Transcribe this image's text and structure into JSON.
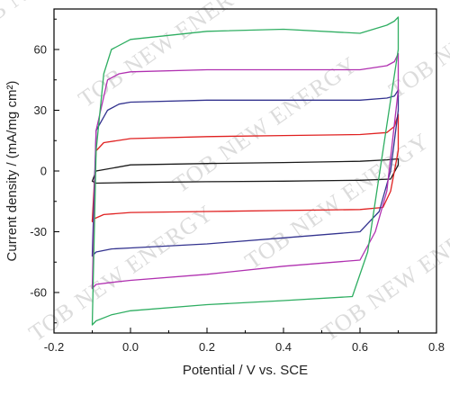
{
  "chart_data": {
    "type": "line",
    "title": "",
    "xlabel": "Potential / V vs. SCE",
    "ylabel": "Current density / (mA/mg cm²)",
    "xlim": [
      -0.2,
      0.8
    ],
    "ylim": [
      -80,
      80
    ],
    "xticks": [
      -0.2,
      0.0,
      0.2,
      0.4,
      0.6,
      0.8
    ],
    "xtick_labels": [
      "-0.2",
      "0.0",
      "0.2",
      "0.4",
      "0.6",
      "0.8"
    ],
    "yticks": [
      -60,
      -30,
      0,
      30,
      60
    ],
    "ytick_labels": [
      "-60",
      "-30",
      "0",
      "30",
      "60"
    ],
    "grid": false,
    "legend": "none",
    "watermark": "TOB NEW ENERGY",
    "series": [
      {
        "color": "#1a1a1a",
        "x": [
          -0.1,
          -0.09,
          0.0,
          0.2,
          0.4,
          0.6,
          0.67,
          0.7,
          0.7,
          0.68,
          0.6,
          0.4,
          0.2,
          0.0,
          -0.09,
          -0.1
        ],
        "y": [
          -5,
          0,
          3,
          3.7,
          4.2,
          4.8,
          5.5,
          6,
          3,
          -4,
          -4.6,
          -5,
          -5.3,
          -5.7,
          -6,
          -5
        ]
      },
      {
        "color": "#e02020",
        "x": [
          -0.1,
          -0.09,
          -0.07,
          0.0,
          0.2,
          0.4,
          0.6,
          0.67,
          0.69,
          0.7,
          0.7,
          0.68,
          0.66,
          0.6,
          0.4,
          0.2,
          0.0,
          -0.07,
          -0.1,
          -0.1
        ],
        "y": [
          -25,
          10,
          14,
          16,
          17,
          17.5,
          18,
          19,
          22,
          28,
          10,
          -10,
          -18,
          -19,
          -19.5,
          -20,
          -20.5,
          -21.5,
          -24,
          -25
        ]
      },
      {
        "color": "#33338f",
        "x": [
          -0.1,
          -0.09,
          -0.06,
          -0.03,
          0.0,
          0.2,
          0.4,
          0.6,
          0.67,
          0.69,
          0.7,
          0.7,
          0.68,
          0.65,
          0.6,
          0.4,
          0.2,
          0.0,
          -0.05,
          -0.09,
          -0.1,
          -0.1
        ],
        "y": [
          -42,
          20,
          30,
          33,
          34,
          35,
          35,
          35,
          36,
          37,
          40,
          30,
          0,
          -20,
          -30,
          -33,
          -36,
          -38,
          -38.5,
          -40,
          -42,
          -42
        ]
      },
      {
        "color": "#b030b0",
        "x": [
          -0.1,
          -0.09,
          -0.06,
          -0.03,
          0.0,
          0.2,
          0.4,
          0.6,
          0.67,
          0.69,
          0.7,
          0.7,
          0.67,
          0.64,
          0.6,
          0.4,
          0.2,
          0.0,
          -0.05,
          -0.09,
          -0.1,
          -0.1
        ],
        "y": [
          -58,
          20,
          45,
          48,
          49,
          50,
          50,
          50,
          52,
          54,
          58,
          40,
          -10,
          -30,
          -44,
          -47,
          -51,
          -54,
          -55,
          -56,
          -58,
          -58
        ]
      },
      {
        "color": "#2fae62",
        "x": [
          -0.1,
          -0.09,
          -0.07,
          -0.05,
          0.0,
          0.2,
          0.4,
          0.6,
          0.67,
          0.69,
          0.7,
          0.7,
          0.66,
          0.62,
          0.58,
          0.4,
          0.2,
          0.0,
          -0.05,
          -0.09,
          -0.1,
          -0.1
        ],
        "y": [
          -76,
          10,
          48,
          60,
          65,
          69,
          70,
          68,
          72,
          74,
          76,
          60,
          10,
          -40,
          -62,
          -64,
          -66,
          -69,
          -71,
          -74,
          -76,
          -76
        ]
      }
    ]
  }
}
